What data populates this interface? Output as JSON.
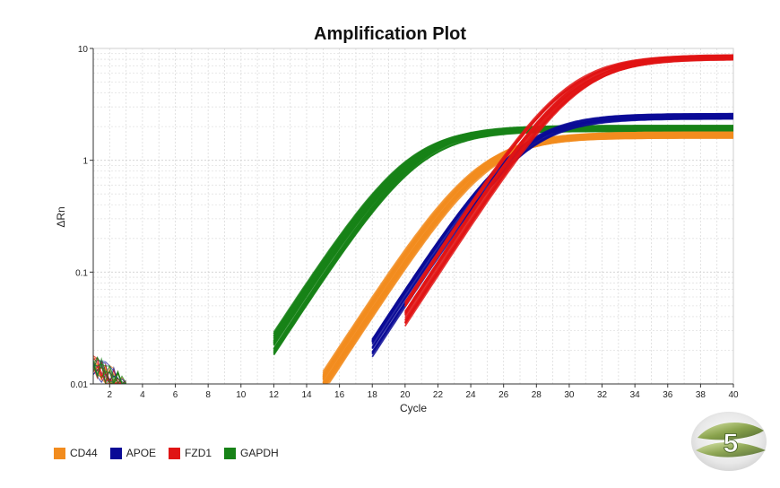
{
  "chart_data": {
    "type": "line",
    "title": "Amplification Plot",
    "xlabel": "Cycle",
    "ylabel": "ΔRn",
    "xlim": [
      1,
      40
    ],
    "ylim": [
      0.01,
      10
    ],
    "yscale": "log",
    "grid": true,
    "x_ticks": [
      "2",
      "4",
      "6",
      "8",
      "10",
      "12",
      "14",
      "16",
      "18",
      "20",
      "22",
      "24",
      "26",
      "28",
      "30",
      "32",
      "34",
      "36",
      "38",
      "40"
    ],
    "y_ticks": [
      "0.01",
      "0.1",
      "1",
      "10"
    ],
    "legend_position": "bottom-left",
    "series": [
      {
        "name": "CD44",
        "color": "#f28c1e",
        "threshold_start": 16.5,
        "midpoint": 24.8,
        "plateau": 1.7,
        "replicates": 28
      },
      {
        "name": "APOE",
        "color": "#0a0a96",
        "threshold_start": 19.5,
        "midpoint": 27.2,
        "plateau": 2.5,
        "replicates": 20
      },
      {
        "name": "FZD1",
        "color": "#e01414",
        "threshold_start": 21.5,
        "midpoint": 30.2,
        "plateau": 8.5,
        "replicates": 20
      },
      {
        "name": "GAPDH",
        "color": "#178217",
        "threshold_start": 13.5,
        "midpoint": 20.5,
        "plateau": 1.95,
        "replicates": 36
      }
    ]
  },
  "badge": {
    "label": "5"
  }
}
